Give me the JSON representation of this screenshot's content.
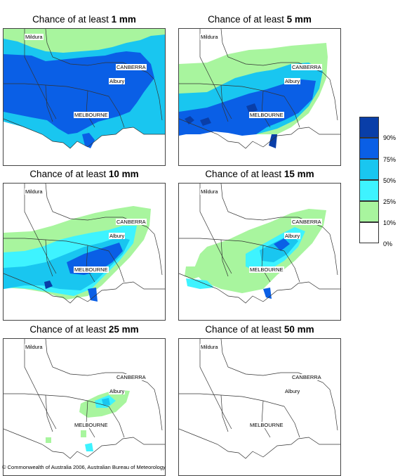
{
  "colors": {
    "bin1": "#a8f59e",
    "bin2": "#3ef3ff",
    "bin3": "#19c6f0",
    "bin4": "#0a5fe6",
    "bin5": "#093ea8",
    "outline": "#333333"
  },
  "panels": [
    {
      "title_prefix": "Chance of at least ",
      "amount": "1 mm"
    },
    {
      "title_prefix": "Chance of at least ",
      "amount": "5 mm"
    },
    {
      "title_prefix": "Chance of at least ",
      "amount": "10 mm"
    },
    {
      "title_prefix": "Chance of at least ",
      "amount": "15 mm"
    },
    {
      "title_prefix": "Chance of at least ",
      "amount": "25 mm"
    },
    {
      "title_prefix": "Chance of at least ",
      "amount": "50 mm"
    }
  ],
  "cities": {
    "mildura": "Mildura",
    "canberra": "CANBERRA",
    "albury": "Albury",
    "melbourne": "MELBOURNE"
  },
  "legend": {
    "labels": [
      "90%",
      "75%",
      "50%",
      "25%",
      "10%",
      "0%"
    ]
  },
  "copyright": "© Commonwealth of Australia 2006, Australian Bureau of Meteorology"
}
